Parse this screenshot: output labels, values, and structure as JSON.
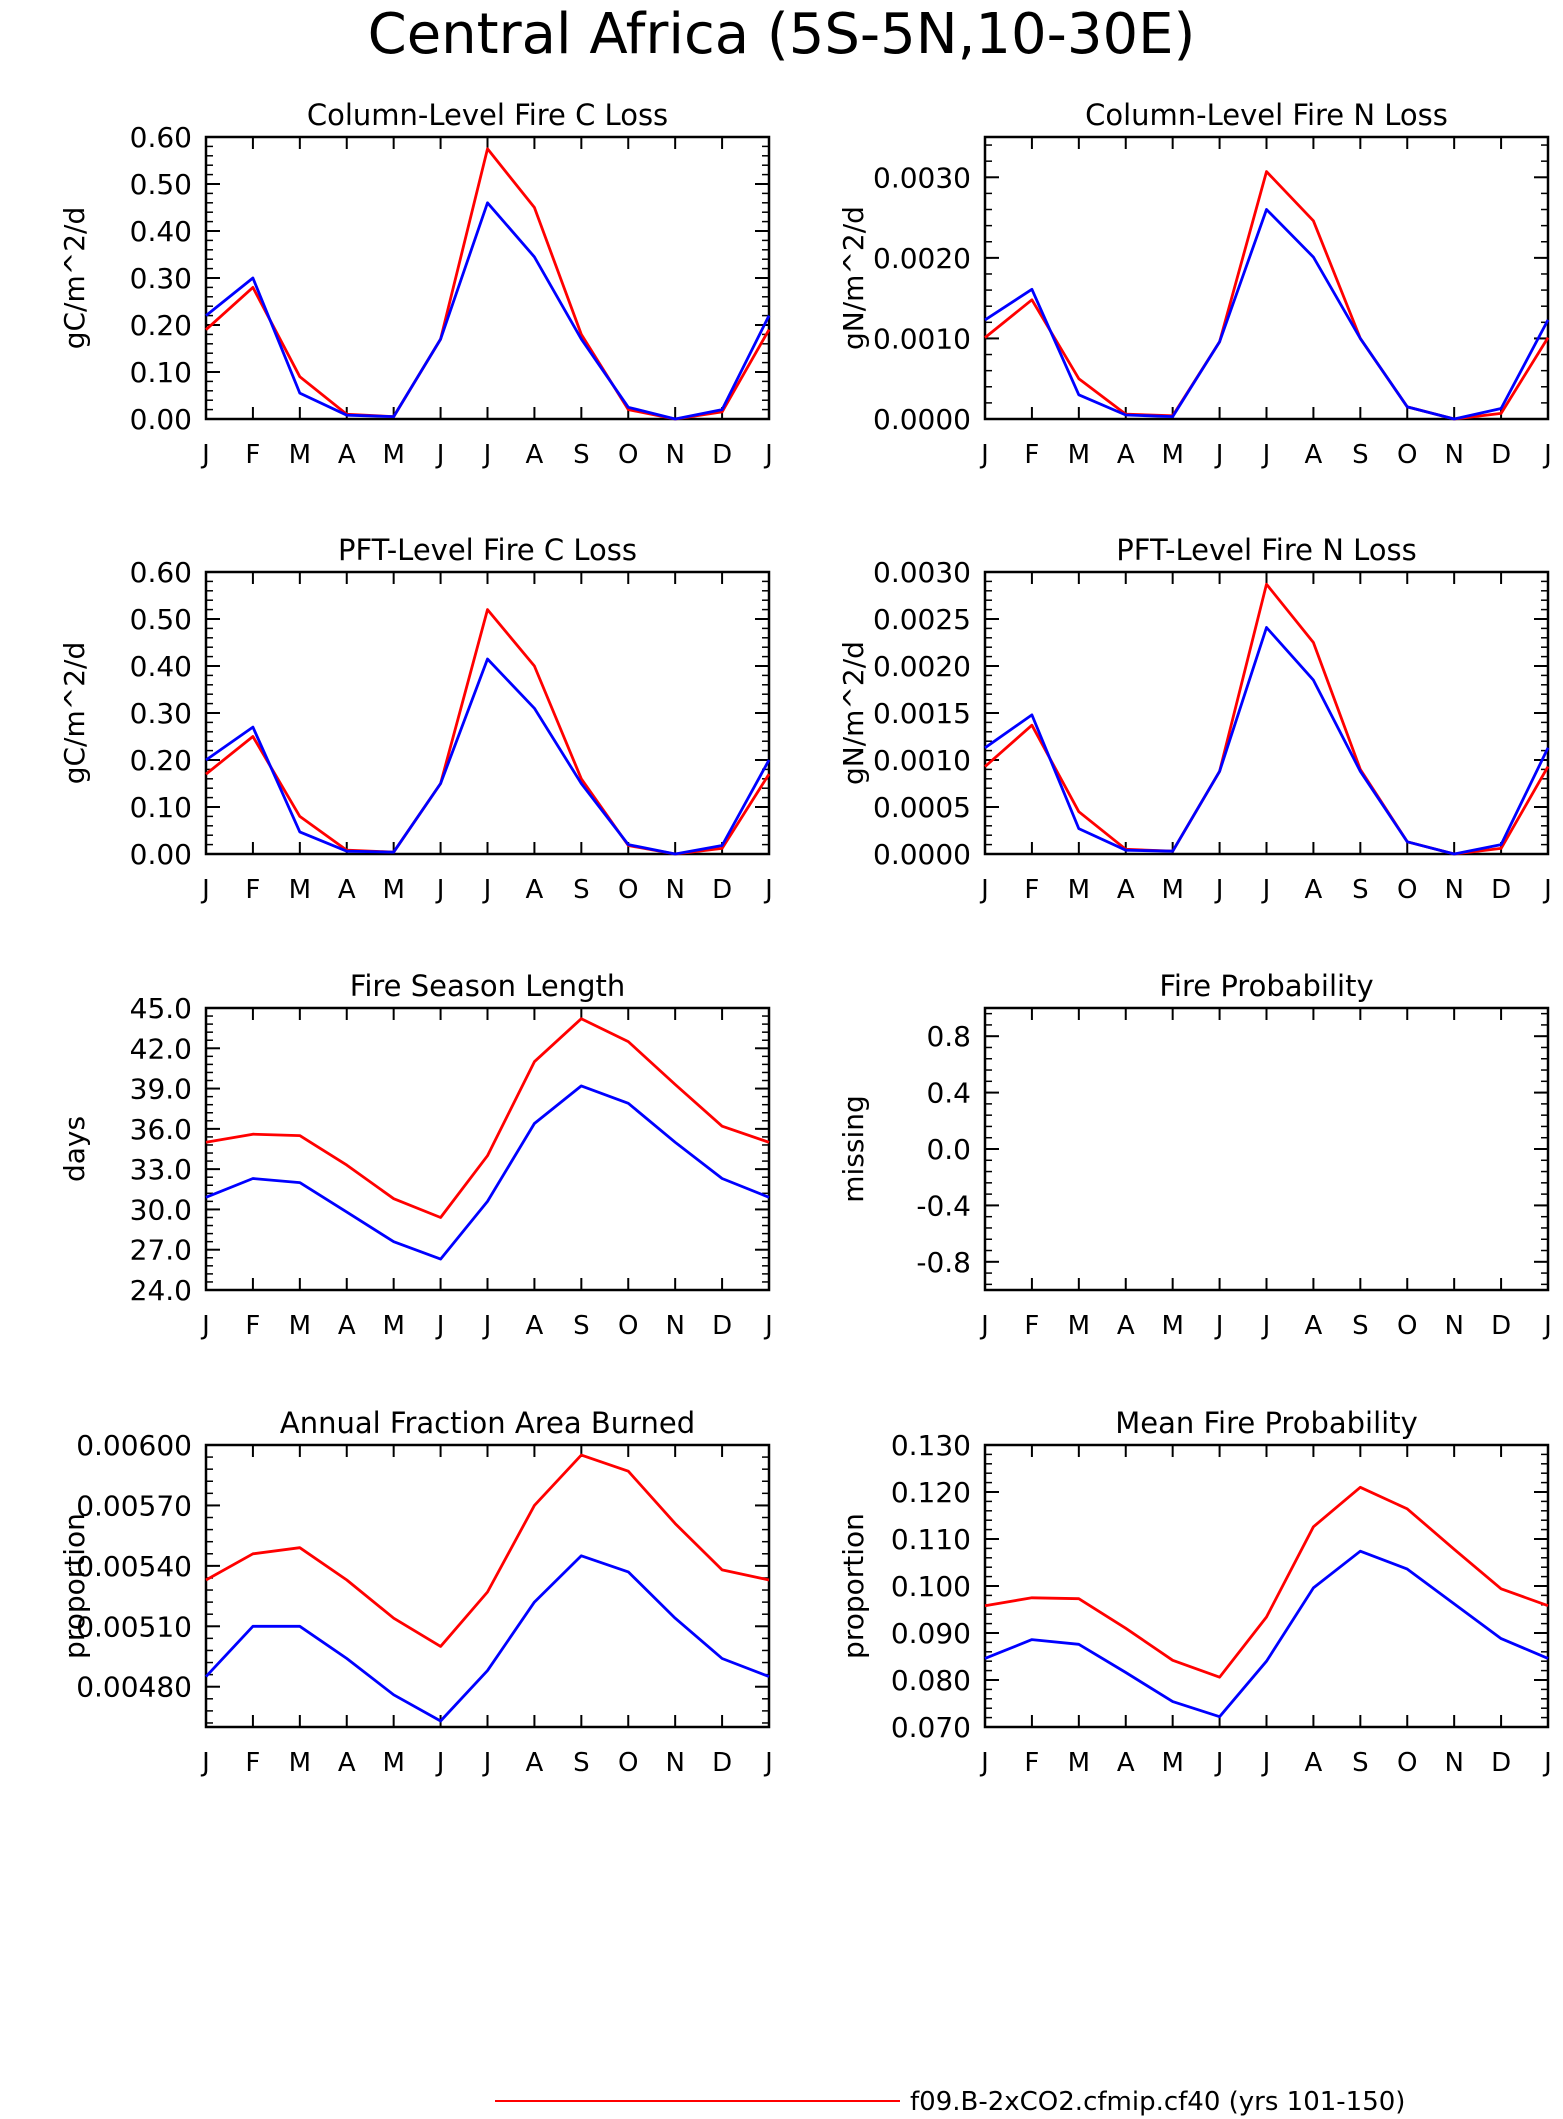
{
  "page_title": "Central Africa (5S-5N,10-30E)",
  "colors": {
    "series_red": "#ff0000",
    "series_blue": "#0000ff",
    "axis": "#000000"
  },
  "legend": {
    "red_label": "f09.B-2xCO2.cfmip.cf40 (yrs 101-150)"
  },
  "month_labels": [
    "J",
    "F",
    "M",
    "A",
    "M",
    "J",
    "J",
    "A",
    "S",
    "O",
    "N",
    "D",
    "J"
  ],
  "chart_data": [
    {
      "type": "line",
      "title": "Column-Level Fire C Loss",
      "ylabel": "gC/m^2/d",
      "ylim": [
        0,
        0.6
      ],
      "yticks": [
        "0.00",
        "0.10",
        "0.20",
        "0.30",
        "0.40",
        "0.50",
        "0.60"
      ],
      "categories": [
        "J",
        "F",
        "M",
        "A",
        "M",
        "J",
        "J",
        "A",
        "S",
        "O",
        "N",
        "D",
        "J"
      ],
      "series": [
        {
          "color": "#ff0000",
          "values": [
            0.19,
            0.28,
            0.09,
            0.01,
            0.005,
            0.17,
            0.575,
            0.45,
            0.18,
            0.02,
            0.0,
            0.015,
            0.19
          ]
        },
        {
          "color": "#0000ff",
          "values": [
            0.22,
            0.3,
            0.055,
            0.008,
            0.005,
            0.17,
            0.46,
            0.345,
            0.17,
            0.025,
            0.0,
            0.02,
            0.22
          ]
        }
      ]
    },
    {
      "type": "line",
      "title": "Column-Level Fire N Loss",
      "ylabel": "gN/m^2/d",
      "ylim": [
        0,
        0.0035
      ],
      "yticks": [
        "0.0000",
        "0.0010",
        "0.0020",
        "0.0030"
      ],
      "categories": [
        "J",
        "F",
        "M",
        "A",
        "M",
        "J",
        "J",
        "A",
        "S",
        "O",
        "N",
        "D",
        "J"
      ],
      "series": [
        {
          "color": "#ff0000",
          "values": [
            0.00101,
            0.00148,
            0.0005,
            6e-05,
            4e-05,
            0.00096,
            0.00307,
            0.00246,
            0.001,
            0.00015,
            0.0,
            7e-05,
            0.00101
          ]
        },
        {
          "color": "#0000ff",
          "values": [
            0.00123,
            0.00161,
            0.0003,
            5e-05,
            3e-05,
            0.00096,
            0.0026,
            0.00201,
            0.001,
            0.00015,
            0.0,
            0.00013,
            0.00123
          ]
        }
      ]
    },
    {
      "type": "line",
      "title": "PFT-Level Fire C Loss",
      "ylabel": "gC/m^2/d",
      "ylim": [
        0,
        0.6
      ],
      "yticks": [
        "0.00",
        "0.10",
        "0.20",
        "0.30",
        "0.40",
        "0.50",
        "0.60"
      ],
      "categories": [
        "J",
        "F",
        "M",
        "A",
        "M",
        "J",
        "J",
        "A",
        "S",
        "O",
        "N",
        "D",
        "J"
      ],
      "series": [
        {
          "color": "#ff0000",
          "values": [
            0.17,
            0.25,
            0.08,
            0.008,
            0.004,
            0.15,
            0.52,
            0.4,
            0.16,
            0.018,
            0.0,
            0.012,
            0.17
          ]
        },
        {
          "color": "#0000ff",
          "values": [
            0.2,
            0.27,
            0.047,
            0.006,
            0.004,
            0.15,
            0.415,
            0.31,
            0.15,
            0.02,
            0.0,
            0.018,
            0.2
          ]
        }
      ]
    },
    {
      "type": "line",
      "title": "PFT-Level Fire N Loss",
      "ylabel": "gN/m^2/d",
      "ylim": [
        0,
        0.003
      ],
      "yticks": [
        "0.0000",
        "0.0005",
        "0.0010",
        "0.0015",
        "0.0020",
        "0.0025",
        "0.0030"
      ],
      "categories": [
        "J",
        "F",
        "M",
        "A",
        "M",
        "J",
        "J",
        "A",
        "S",
        "O",
        "N",
        "D",
        "J"
      ],
      "series": [
        {
          "color": "#ff0000",
          "values": [
            0.00093,
            0.00137,
            0.00045,
            5e-05,
            3e-05,
            0.00088,
            0.00287,
            0.00225,
            0.0009,
            0.00013,
            0.0,
            6e-05,
            0.00093
          ]
        },
        {
          "color": "#0000ff",
          "values": [
            0.00113,
            0.00148,
            0.00027,
            4e-05,
            3e-05,
            0.00088,
            0.00241,
            0.00185,
            0.00088,
            0.00013,
            0.0,
            0.0001,
            0.00113
          ]
        }
      ]
    },
    {
      "type": "line",
      "title": "Fire Season Length",
      "ylabel": "days",
      "ylim": [
        24,
        45
      ],
      "yticks": [
        "24.0",
        "27.0",
        "30.0",
        "33.0",
        "36.0",
        "39.0",
        "42.0",
        "45.0"
      ],
      "categories": [
        "J",
        "F",
        "M",
        "A",
        "M",
        "J",
        "J",
        "A",
        "S",
        "O",
        "N",
        "D",
        "J"
      ],
      "series": [
        {
          "color": "#ff0000",
          "values": [
            35.0,
            35.6,
            35.5,
            33.3,
            30.8,
            29.4,
            34.0,
            41.0,
            44.2,
            42.5,
            39.3,
            36.2,
            35.0
          ]
        },
        {
          "color": "#0000ff",
          "values": [
            30.9,
            32.3,
            32.0,
            29.8,
            27.6,
            26.3,
            30.6,
            36.4,
            39.2,
            37.9,
            35.0,
            32.3,
            30.9
          ]
        }
      ]
    },
    {
      "type": "line",
      "title": "Fire Probability",
      "ylabel": "missing",
      "ylim": [
        -1,
        1
      ],
      "yticks": [
        "-0.8",
        "-0.4",
        "0.0",
        "0.4",
        "0.8"
      ],
      "categories": [
        "J",
        "F",
        "M",
        "A",
        "M",
        "J",
        "J",
        "A",
        "S",
        "O",
        "N",
        "D",
        "J"
      ],
      "series": []
    },
    {
      "type": "line",
      "title": "Annual Fraction Area Burned",
      "ylabel": "proportion",
      "ylim": [
        0.0046,
        0.006
      ],
      "yticks": [
        "0.00480",
        "0.00510",
        "0.00540",
        "0.00570",
        "0.00600"
      ],
      "categories": [
        "J",
        "F",
        "M",
        "A",
        "M",
        "J",
        "J",
        "A",
        "S",
        "O",
        "N",
        "D",
        "J"
      ],
      "series": [
        {
          "color": "#ff0000",
          "values": [
            0.00533,
            0.00546,
            0.00549,
            0.00533,
            0.00514,
            0.005,
            0.00527,
            0.0057,
            0.00595,
            0.00587,
            0.00561,
            0.00538,
            0.00533
          ]
        },
        {
          "color": "#0000ff",
          "values": [
            0.00485,
            0.0051,
            0.0051,
            0.00494,
            0.00476,
            0.00463,
            0.00488,
            0.00522,
            0.00545,
            0.00537,
            0.00514,
            0.00494,
            0.00485
          ]
        }
      ]
    },
    {
      "type": "line",
      "title": "Mean Fire Probability",
      "ylabel": "proportion",
      "ylim": [
        0.07,
        0.13
      ],
      "yticks": [
        "0.070",
        "0.080",
        "0.090",
        "0.100",
        "0.110",
        "0.120",
        "0.130"
      ],
      "categories": [
        "J",
        "F",
        "M",
        "A",
        "M",
        "J",
        "J",
        "A",
        "S",
        "O",
        "N",
        "D",
        "J"
      ],
      "series": [
        {
          "color": "#ff0000",
          "values": [
            0.0958,
            0.0975,
            0.0973,
            0.091,
            0.0842,
            0.0806,
            0.0934,
            0.1126,
            0.121,
            0.1164,
            0.1078,
            0.0994,
            0.0958
          ]
        },
        {
          "color": "#0000ff",
          "values": [
            0.0846,
            0.0886,
            0.0876,
            0.0816,
            0.0754,
            0.0722,
            0.084,
            0.0996,
            0.1074,
            0.1036,
            0.0962,
            0.0888,
            0.0846
          ]
        }
      ]
    }
  ]
}
